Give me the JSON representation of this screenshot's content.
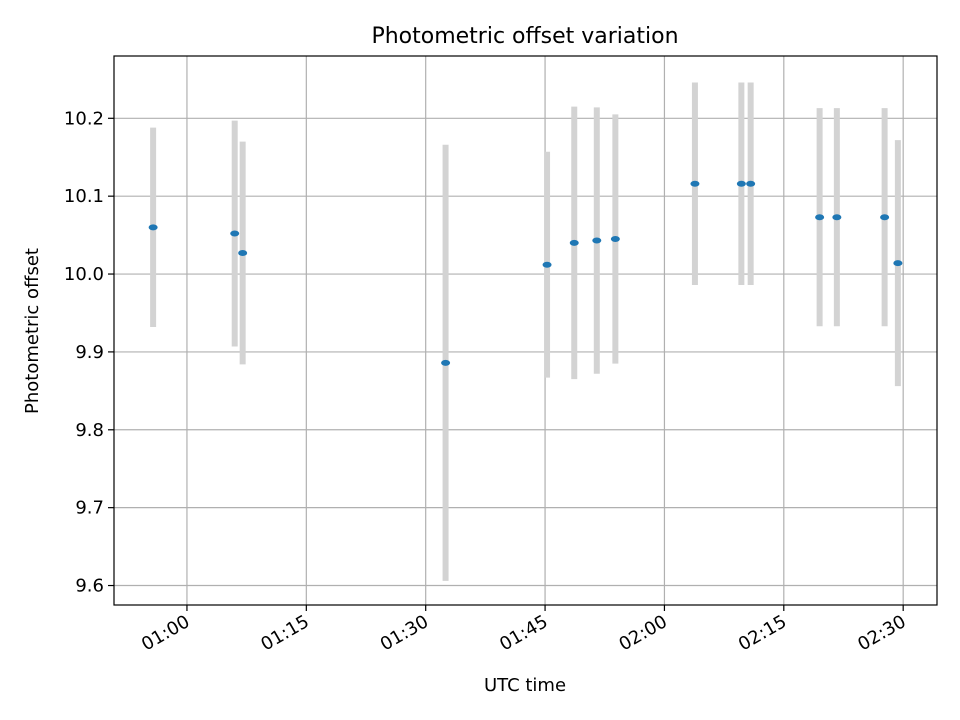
{
  "chart_data": {
    "type": "scatter",
    "title": "Photometric offset variation",
    "xlabel": "UTC time",
    "ylabel": "Photometric offset",
    "xlim": [
      "00:50:50",
      "02:34:15"
    ],
    "ylim": [
      9.575,
      10.28
    ],
    "x_ticks": [
      "01:00",
      "01:15",
      "01:30",
      "01:45",
      "02:00",
      "02:15",
      "02:30"
    ],
    "y_ticks": [
      "9.6",
      "9.7",
      "9.8",
      "9.9",
      "10.0",
      "10.1",
      "10.2"
    ],
    "grid": true,
    "colors": {
      "point": "#1f77b4",
      "errorbar": "#d3d3d3",
      "grid": "#b0b0b0"
    },
    "points": [
      {
        "x": "00:55:45",
        "y": 10.06,
        "y_err": 0.128
      },
      {
        "x": "01:06:00",
        "y": 10.052,
        "y_err": 0.145
      },
      {
        "x": "01:07:00",
        "y": 10.027,
        "y_err": 0.143
      },
      {
        "x": "01:32:30",
        "y": 9.886,
        "y_err": 0.28
      },
      {
        "x": "01:45:15",
        "y": 10.012,
        "y_err": 0.145
      },
      {
        "x": "01:48:40",
        "y": 10.04,
        "y_err": 0.175
      },
      {
        "x": "01:51:30",
        "y": 10.043,
        "y_err": 0.171
      },
      {
        "x": "01:53:50",
        "y": 10.045,
        "y_err": 0.16
      },
      {
        "x": "02:03:50",
        "y": 10.116,
        "y_err": 0.13
      },
      {
        "x": "02:09:40",
        "y": 10.116,
        "y_err": 0.13
      },
      {
        "x": "02:10:50",
        "y": 10.116,
        "y_err": 0.13
      },
      {
        "x": "02:19:30",
        "y": 10.073,
        "y_err": 0.14
      },
      {
        "x": "02:21:40",
        "y": 10.073,
        "y_err": 0.14
      },
      {
        "x": "02:27:40",
        "y": 10.073,
        "y_err": 0.14
      },
      {
        "x": "02:29:20",
        "y": 10.014,
        "y_err": 0.158
      }
    ]
  }
}
